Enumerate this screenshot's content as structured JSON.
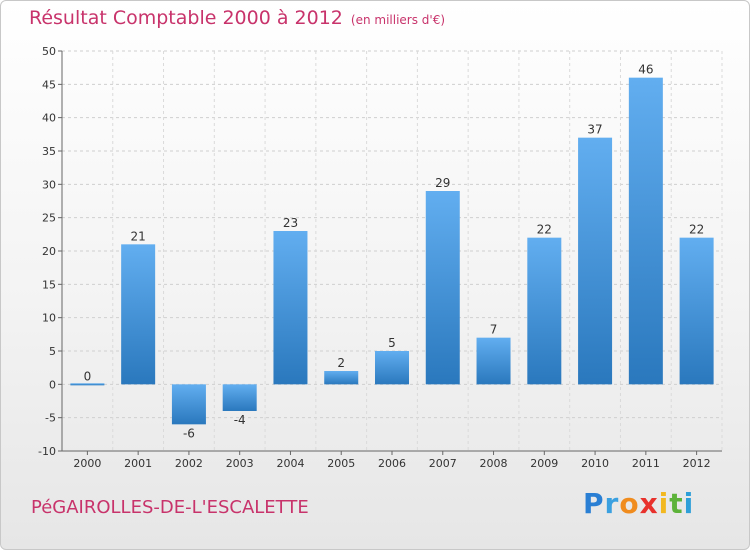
{
  "header": {
    "title": "Résultat Comptable 2000 à 2012",
    "subtitle": "(en milliers d'€)"
  },
  "footer": {
    "location": "PéGAIROLLES-DE-L'ESCALETTE",
    "logo": {
      "letters": [
        "P",
        "r",
        "o",
        "x",
        "i",
        "t",
        "i"
      ],
      "colors": [
        "#2a7fd4",
        "#3aa0e0",
        "#f08c1e",
        "#e8312c",
        "#f2b81f",
        "#5db33a",
        "#2e9fd8"
      ]
    }
  },
  "chart_data": {
    "type": "bar",
    "categories": [
      "2000",
      "2001",
      "2002",
      "2003",
      "2004",
      "2005",
      "2006",
      "2007",
      "2008",
      "2009",
      "2010",
      "2011",
      "2012"
    ],
    "values": [
      0,
      21,
      -6,
      -4,
      23,
      2,
      5,
      29,
      7,
      22,
      37,
      46,
      22
    ],
    "data_labels": [
      "0",
      "21",
      "-6",
      "-4",
      "23",
      "2",
      "5",
      "29",
      "7",
      "22",
      "37",
      "46",
      "22"
    ],
    "yticks": [
      -10,
      -5,
      0,
      5,
      10,
      15,
      20,
      25,
      30,
      35,
      40,
      45,
      50
    ],
    "ylim": [
      -10,
      50
    ],
    "grid": true,
    "bar_color": "#3b8fd6",
    "title": "Résultat Comptable 2000 à 2012",
    "xlabel": "",
    "ylabel": ""
  }
}
